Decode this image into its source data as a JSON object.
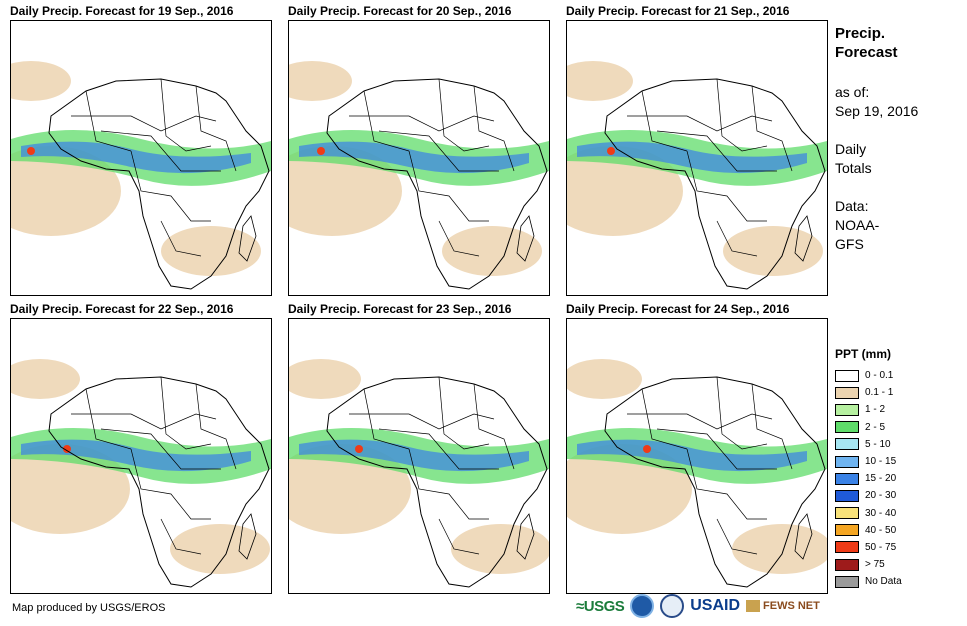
{
  "panels": [
    {
      "title": "Daily Precip. Forecast for 19 Sep., 2016"
    },
    {
      "title": "Daily Precip. Forecast for 20 Sep., 2016"
    },
    {
      "title": "Daily Precip. Forecast for 21 Sep., 2016"
    },
    {
      "title": "Daily Precip. Forecast for 22 Sep., 2016"
    },
    {
      "title": "Daily Precip. Forecast for 23 Sep., 2016"
    },
    {
      "title": "Daily Precip. Forecast for 24 Sep., 2016"
    }
  ],
  "sidebar": {
    "title_line1": "Precip.",
    "title_line2": "Forecast",
    "asof_label": "as of:",
    "asof_date": "Sep 19, 2016",
    "totals_line1": "Daily",
    "totals_line2": "Totals",
    "data_line1": "Data:",
    "data_line2": "NOAA-",
    "data_line3": "GFS"
  },
  "legend": {
    "title": "PPT (mm)",
    "items": [
      {
        "label": "0 - 0.1",
        "color": "#ffffff"
      },
      {
        "label": "0.1 - 1",
        "color": "#ecd4b0"
      },
      {
        "label": "1 - 2",
        "color": "#b6f0a0"
      },
      {
        "label": "2 - 5",
        "color": "#5fdc6a"
      },
      {
        "label": "5 - 10",
        "color": "#a6e6f2"
      },
      {
        "label": "10 - 15",
        "color": "#6fb4f0"
      },
      {
        "label": "15 - 20",
        "color": "#3a82e6"
      },
      {
        "label": "20 - 30",
        "color": "#1f5ad8"
      },
      {
        "label": "30 - 40",
        "color": "#f8e27a"
      },
      {
        "label": "40 - 50",
        "color": "#f5a623"
      },
      {
        "label": "50 - 75",
        "color": "#ef3b17"
      },
      {
        "label": "> 75",
        "color": "#9e1b1b"
      },
      {
        "label": "No Data",
        "color": "#9a9a9a"
      }
    ]
  },
  "footer": {
    "credit": "Map produced by USGS/EROS",
    "logo_usgs": "≈USGS",
    "logo_usaid": "USAID",
    "logo_fews": "FEWS NET"
  }
}
